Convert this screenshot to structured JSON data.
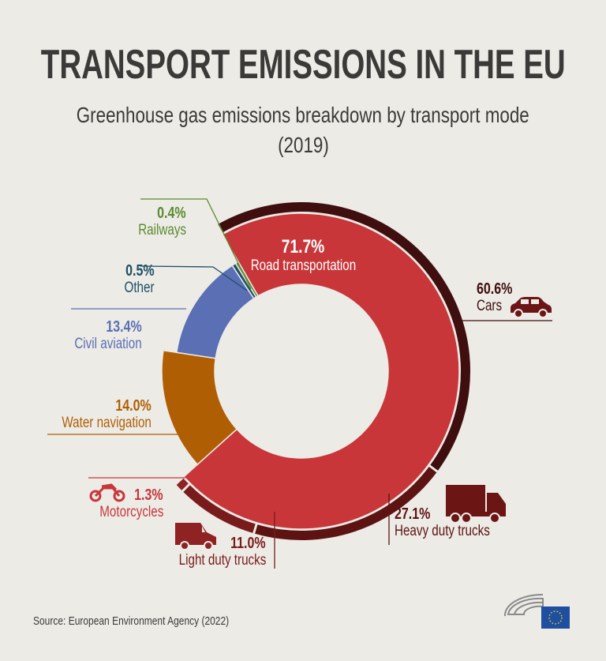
{
  "title": "TRANSPORT EMISSIONS IN THE EU",
  "subtitle": "Greenhouse gas emissions breakdown by transport mode",
  "subtitle_year": "(2019)",
  "source": "Source: European Environment Agency (2022)",
  "logo": "European Parliament",
  "chart_data": {
    "type": "pie",
    "style": "donut with outer sub-ring",
    "title": "TRANSPORT EMISSIONS IN THE EU",
    "subtitle": "Greenhouse gas emissions breakdown by transport mode (2019)",
    "slices": [
      {
        "label": "Road transportation",
        "value": 71.7,
        "display": "71.7%",
        "color": "#c8363a"
      },
      {
        "label": "Water navigation",
        "value": 14.0,
        "display": "14.0%",
        "color": "#b05e04"
      },
      {
        "label": "Civil aviation",
        "value": 13.4,
        "display": "13.4%",
        "color": "#5a6fb4"
      },
      {
        "label": "Other",
        "value": 0.5,
        "display": "0.5%",
        "color": "#1d4f66"
      },
      {
        "label": "Railways",
        "value": 0.4,
        "display": "0.4%",
        "color": "#5b8b2f"
      }
    ],
    "road_breakdown": [
      {
        "label": "Cars",
        "value": 60.6,
        "display": "60.6%",
        "color": "#3f0e0e"
      },
      {
        "label": "Heavy duty trucks",
        "value": 27.1,
        "display": "27.1%",
        "color": "#5e1313"
      },
      {
        "label": "Light duty trucks",
        "value": 11.0,
        "display": "11.0%",
        "color": "#7a1b1b"
      },
      {
        "label": "Motorcycles",
        "value": 1.3,
        "display": "1.3%",
        "color": "#8f2222"
      }
    ]
  }
}
